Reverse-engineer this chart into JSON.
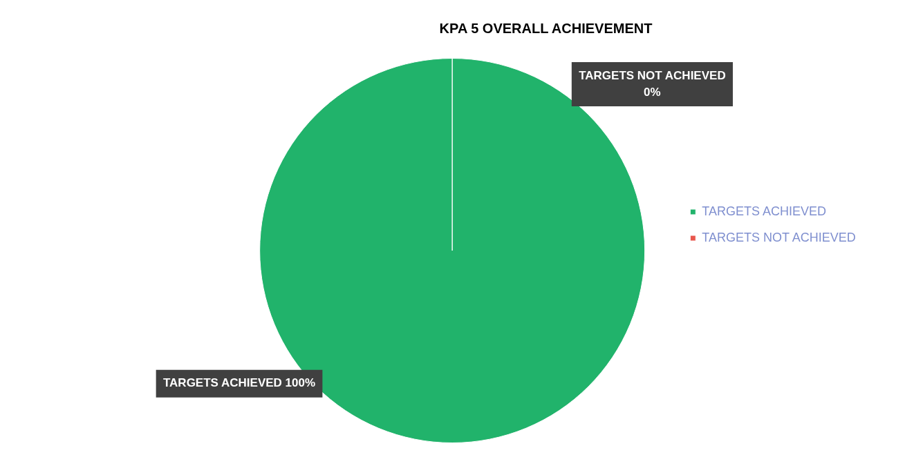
{
  "chart_data": {
    "type": "pie",
    "title": "KPA 5 OVERALL ACHIEVEMENT",
    "categories": [
      "TARGETS ACHIEVED",
      "TARGETS NOT ACHIEVED"
    ],
    "values": [
      100,
      0
    ],
    "colors": [
      "#21b36b",
      "#e8564c"
    ],
    "value_labels": [
      "100%",
      "0%"
    ],
    "legend": "right"
  }
}
